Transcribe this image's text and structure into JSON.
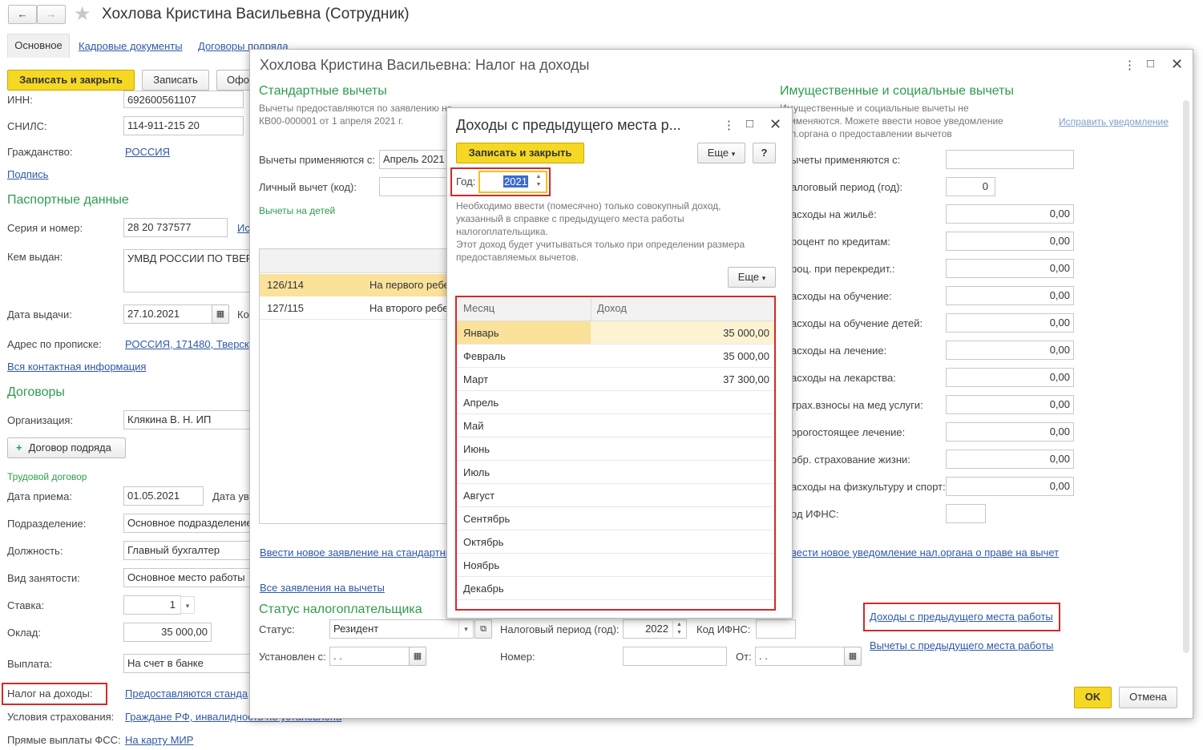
{
  "main": {
    "title": "Хохлова Кристина Васильевна (Сотрудник)",
    "tabs": [
      "Основное",
      "Кадровые документы",
      "Договоры подряда"
    ],
    "save_close": "Записать и закрыть",
    "save": "Записать",
    "more_cut": "Офо",
    "inn_label": "ИНН:",
    "inn_value": "692600561107",
    "snils_label": "СНИЛС:",
    "snils_value": "114-911-215 20",
    "citizenship_label": "Гражданство:",
    "citizenship_value": "РОССИЯ",
    "signature_link": "Подпись",
    "passport_header": "Паспортные данные",
    "series_label": "Серия и номер:",
    "series_value": "28 20 737577",
    "series_link_cut": "Ис",
    "issued_by_label": "Кем выдан:",
    "issued_by_value": "УМВД РОССИИ ПО ТВЕР",
    "issue_date_label": "Дата выдачи:",
    "issue_date_value": "27.10.2021",
    "issue_code_cut": "Ко",
    "address_label": "Адрес по прописке:",
    "address_value": "РОССИЯ, 171480, Тверск",
    "all_contacts_link": "Вся контактная информация",
    "contracts_header": "Договоры",
    "org_label": "Организация:",
    "org_value": "Клякина В. Н. ИП",
    "add_contract_button": "Договор подряда",
    "labor_contract_link": "Трудовой договор",
    "hire_date_label": "Дата приема:",
    "hire_date_value": "01.05.2021",
    "hire_date2_cut": "Дата ув",
    "division_label": "Подразделение:",
    "division_value": "Основное подразделение",
    "position_label": "Должность:",
    "position_value": "Главный бухгалтер",
    "employment_label": "Вид занятости:",
    "employment_value": "Основное место работы",
    "rate_label": "Ставка:",
    "rate_value": "1",
    "salary_label": "Оклад:",
    "salary_value": "35 000,00",
    "payment_label": "Выплата:",
    "payment_value": "На счет в банке",
    "tax_label": "Налог на доходы:",
    "tax_link": "Предоставляются станда",
    "insurance_label": "Условия страхования:",
    "insurance_link": "Граждане РФ, инвалидность не установлена",
    "fss_label": "Прямые выплаты ФСС:",
    "fss_link": "На карту МИР"
  },
  "tax_window": {
    "title": "Хохлова Кристина Васильевна: Налог на доходы",
    "std_header": "Стандартные вычеты",
    "std_note_1": "Вычеты предоставляются по заявлению номер",
    "std_note_2": "КВ00-000001 от 1 апреля 2021 г.",
    "applied_from_label": "Вычеты применяются с:",
    "applied_from_value": "Апрель 2021",
    "personal_label": "Личный вычет (код):",
    "children_link": "Вычеты на детей",
    "child_rows": [
      {
        "code": "126/114",
        "name": "На первого ребе"
      },
      {
        "code": "127/115",
        "name": "На второго ребе"
      }
    ],
    "new_std_link": "Ввести новое заявление на стандартные",
    "all_apps_link": "Все заявления на вычеты",
    "status_header": "Статус налогоплательщика",
    "status_label": "Статус:",
    "status_value": "Резидент",
    "tax_period_label": "Налоговый период (год):",
    "tax_period_value": "2022",
    "ifns_label": "Код ИФНС:",
    "set_from_label": "Установлен с:",
    "set_from_value": " .  .",
    "number_label": "Номер:",
    "from_label": "От:",
    "from_value": " .  .",
    "prop_header": "Имущественные и социальные вычеты",
    "prop_note_1": "Имущественные и социальные вычеты не",
    "prop_note_2": "применяются. Можете ввести новое уведомление",
    "prop_note_3": "нал.органа о предоставлении вычетов",
    "fix_link": "Исправить уведомление",
    "prop_rows": [
      {
        "label": "ычеты применяются с:",
        "value": ""
      },
      {
        "label": "алоговый период (год):",
        "value": "0"
      },
      {
        "label": "асходы на жильё:",
        "value": "0,00"
      },
      {
        "label": "роцент по кредитам:",
        "value": "0,00"
      },
      {
        "label": "роц. при перекредит.:",
        "value": "0,00"
      },
      {
        "label": "асходы на обучение:",
        "value": "0,00"
      },
      {
        "label": "асходы на обучение детей:",
        "value": "0,00"
      },
      {
        "label": "асходы на лечение:",
        "value": "0,00"
      },
      {
        "label": "асходы на лекарства:",
        "value": "0,00"
      },
      {
        "label": "трах.взносы на мед услуги:",
        "value": "0,00"
      },
      {
        "label": "орогостоящее лечение:",
        "value": "0,00"
      },
      {
        "label": "обр. страхование жизни:",
        "value": "0,00"
      },
      {
        "label": "асходы на физкультуру и спорт:",
        "value": "0,00"
      },
      {
        "label": "од ИФНС:",
        "value": ""
      }
    ],
    "new_notice_link": "вести новое уведомление нал.органа о праве на вычет",
    "prev_income_link": "Доходы с предыдущего места работы",
    "prev_deductions_link": "Вычеты с предыдущего места работы",
    "ok_button": "OK",
    "cancel_button": "Отмена"
  },
  "income_dialog": {
    "title": "Доходы с предыдущего места р...",
    "save_close": "Записать и закрыть",
    "more": "Еще",
    "help": "?",
    "year_label": "Год:",
    "year_value": "2021",
    "note_1": "Необходимо ввести (помесячно) только совокупный доход,",
    "note_2": "указанный в справке с предыдущего места работы",
    "note_3": "налогоплательщика.",
    "note_4": "Этот доход будет учитываться только при определении размера",
    "note_5": "предоставляемых вычетов.",
    "more2": "Еще",
    "col_month": "Месяц",
    "col_income": "Доход",
    "rows": [
      {
        "month": "Январь",
        "income": "35 000,00"
      },
      {
        "month": "Февраль",
        "income": "35 000,00"
      },
      {
        "month": "Март",
        "income": "37 300,00"
      },
      {
        "month": "Апрель",
        "income": ""
      },
      {
        "month": "Май",
        "income": ""
      },
      {
        "month": "Июнь",
        "income": ""
      },
      {
        "month": "Июль",
        "income": ""
      },
      {
        "month": "Август",
        "income": ""
      },
      {
        "month": "Сентябрь",
        "income": ""
      },
      {
        "month": "Октябрь",
        "income": ""
      },
      {
        "month": "Ноябрь",
        "income": ""
      },
      {
        "month": "Декабрь",
        "income": ""
      }
    ]
  }
}
